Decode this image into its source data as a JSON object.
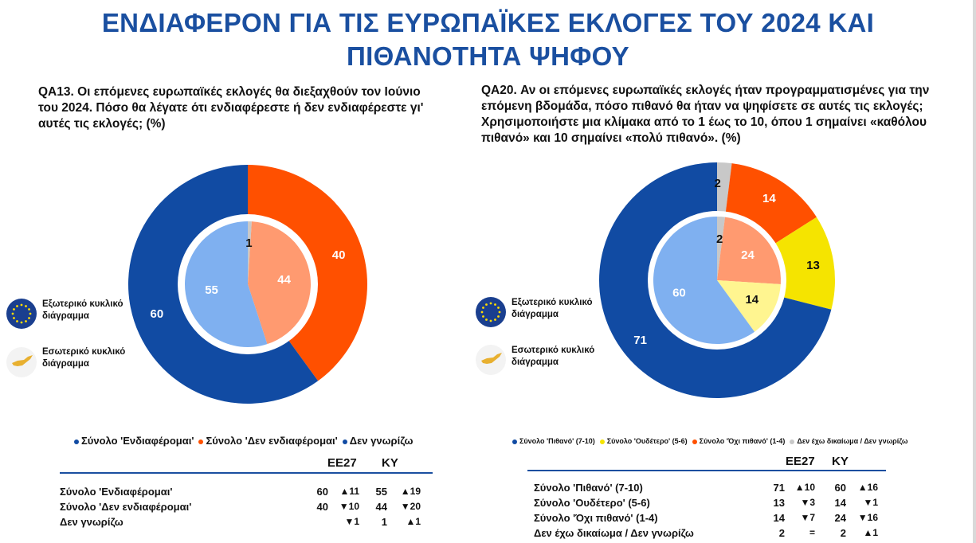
{
  "title_line1": "ΕΝΔΙΑΦΕΡΟΝ ΓΙΑ ΤΙΣ ΕΥΡΩΠΑΪΚΕΣ ΕΚΛΟΓΕΣ ΤΟΥ 2024 ΚΑΙ",
  "title_line2": "ΠΙΘΑΝΟΤΗΤΑ ΨΗΦΟΥ",
  "side_legend": {
    "outer": "Εξωτερικό κυκλικό διάγραμμα",
    "inner": "Εσωτερικό κυκλικό διάγραμμα",
    "outer_icon": "eu-flag-icon",
    "inner_icon": "cyprus-map-icon"
  },
  "colors": {
    "dark_blue": "#114ba3",
    "light_blue": "#7fb0f0",
    "orange": "#ff5000",
    "light_orange": "#ff9a70",
    "yellow": "#f5e400",
    "light_yellow": "#fff590",
    "grey": "#c8c8c8",
    "title_blue": "#1a4fa0"
  },
  "chart_data": [
    {
      "type": "pie",
      "subtype": "nested-donut",
      "title": "QA13. Οι επόμενες ευρωπαϊκές εκλογές θα διεξαχθούν τον Ιούνιο του 2024. Πόσο θα λέγατε ότι ενδιαφέρεστε ή δεν ενδιαφέρεστε γι' αυτές τις εκλογές; (%)",
      "categories": [
        "Σύνολο 'Ενδιαφέρομαι'",
        "Σύνολο 'Δεν ενδιαφέρομαι'",
        "Δεν γνωρίζω"
      ],
      "series": [
        {
          "name": "EE27",
          "ring": "outer",
          "values": [
            60,
            40,
            null
          ],
          "labels": [
            "60",
            "40",
            ""
          ]
        },
        {
          "name": "KY",
          "ring": "inner",
          "values": [
            55,
            44,
            1
          ],
          "labels": [
            "55",
            "44",
            "1"
          ]
        }
      ],
      "legend": {
        "position": "bottom",
        "entries": [
          "Σύνολο 'Ενδιαφέρομαι'",
          "Σύνολο 'Δεν ενδιαφέρομαι'",
          "Δεν γνωρίζω"
        ]
      },
      "table": {
        "columns": [
          "EE27",
          "KY"
        ],
        "rows": [
          {
            "label": "Σύνολο 'Ενδιαφέρομαι'",
            "ee27": "60",
            "ee27_change": "▲11",
            "ky": "55",
            "ky_change": "▲19"
          },
          {
            "label": "Σύνολο 'Δεν ενδιαφέρομαι'",
            "ee27": "40",
            "ee27_change": "▼10",
            "ky": "44",
            "ky_change": "▼20"
          },
          {
            "label": "Δεν γνωρίζω",
            "ee27": "",
            "ee27_change": "▼1",
            "ky": "1",
            "ky_change": "▲1"
          }
        ]
      }
    },
    {
      "type": "pie",
      "subtype": "nested-donut",
      "title": "QA20. Αν οι επόμενες ευρωπαϊκές εκλογές ήταν προγραμματισμένες για την επόμενη βδομάδα, πόσο πιθανό θα ήταν να ψηφίσετε σε αυτές τις εκλογές; Χρησιμοποιήστε μια κλίμακα από το 1 έως το 10, όπου 1 σημαίνει «καθόλου πιθανό» και 10 σημαίνει «πολύ πιθανό». (%)",
      "categories": [
        "Σύνολο 'Πιθανό' (7-10)",
        "Σύνολο 'Ουδέτερο' (5-6)",
        "Σύνολο 'Όχι πιθανό' (1-4)",
        "Δεν έχω δικαίωμα / Δεν γνωρίζω"
      ],
      "series": [
        {
          "name": "EE27",
          "ring": "outer",
          "values": [
            71,
            13,
            14,
            2
          ],
          "labels": [
            "71",
            "13",
            "14",
            "2"
          ]
        },
        {
          "name": "KY",
          "ring": "inner",
          "values": [
            60,
            14,
            24,
            2
          ],
          "labels": [
            "60",
            "14",
            "24",
            "2"
          ]
        }
      ],
      "legend": {
        "position": "bottom",
        "entries": [
          "Σύνολο 'Πιθανό' (7-10)",
          "Σύνολο 'Ουδέτερο' (5-6)",
          "Σύνολο 'Όχι πιθανό' (1-4)",
          "Δεν έχω δικαίωμα / Δεν γνωρίζω"
        ]
      },
      "table": {
        "columns": [
          "EE27",
          "KY"
        ],
        "rows": [
          {
            "label": "Σύνολο 'Πιθανό' (7-10)",
            "ee27": "71",
            "ee27_change": "▲10",
            "ky": "60",
            "ky_change": "▲16"
          },
          {
            "label": "Σύνολο 'Ουδέτερο' (5-6)",
            "ee27": "13",
            "ee27_change": "▼3",
            "ky": "14",
            "ky_change": "▼1"
          },
          {
            "label": "Σύνολο 'Όχι πιθανό' (1-4)",
            "ee27": "14",
            "ee27_change": "▼7",
            "ky": "24",
            "ky_change": "▼16"
          },
          {
            "label": "Δεν έχω δικαίωμα / Δεν γνωρίζω",
            "ee27": "2",
            "ee27_change": "=",
            "ky": "2",
            "ky_change": "▲1"
          }
        ]
      }
    }
  ]
}
